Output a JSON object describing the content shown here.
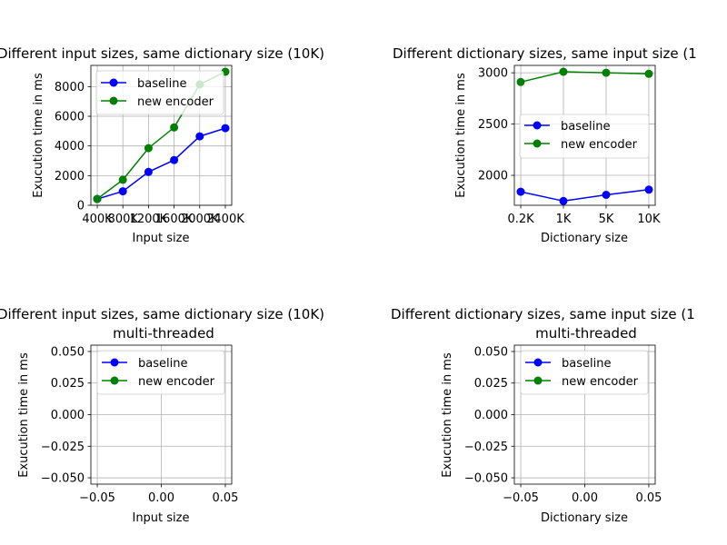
{
  "chart_data": [
    {
      "type": "line",
      "title": "Different input sizes, same dictionary size (10K)",
      "xlabel": "Input size",
      "ylabel": "Exucution time in ms",
      "categories": [
        "400K",
        "800K",
        "1200K",
        "1600K",
        "2000K",
        "2400K"
      ],
      "yticks": [
        0,
        2000,
        4000,
        6000,
        8000
      ],
      "ylim": [
        0,
        9430
      ],
      "grid": true,
      "legend": "upper-left",
      "series": [
        {
          "name": "baseline",
          "color": "#0000ff",
          "values": [
            420,
            940,
            2250,
            3050,
            4650,
            5200
          ]
        },
        {
          "name": "new encoder",
          "color": "#008000",
          "values": [
            430,
            1720,
            3850,
            5250,
            8150,
            9000
          ]
        }
      ]
    },
    {
      "type": "line",
      "title": "Different dictionary sizes, same input size (1",
      "xlabel": "Dictionary size",
      "ylabel": "Exucution time in ms",
      "categories": [
        "0.2K",
        "1K",
        "5K",
        "10K"
      ],
      "yticks": [
        2000,
        2500,
        3000
      ],
      "ylim": [
        1708,
        3072
      ],
      "grid": true,
      "legend": "center-right",
      "series": [
        {
          "name": "baseline",
          "color": "#0000ff",
          "values": [
            1840,
            1750,
            1810,
            1860
          ]
        },
        {
          "name": "new encoder",
          "color": "#008000",
          "values": [
            2910,
            3010,
            3000,
            2990
          ]
        }
      ]
    },
    {
      "type": "line",
      "title": "Different input sizes, same dictionary size (10K)",
      "subtitle": "multi-threaded",
      "xlabel": "Input size",
      "ylabel": "Exucution time in ms",
      "xticks": [
        "−0.05",
        "0.00",
        "0.05"
      ],
      "yticks": [
        "−0.050",
        "−0.025",
        "0.000",
        "0.025",
        "0.050"
      ],
      "xlim": [
        -0.055,
        0.055
      ],
      "ylim": [
        -0.055,
        0.055
      ],
      "grid": true,
      "legend": "upper-left",
      "series": [
        {
          "name": "baseline",
          "color": "#0000ff",
          "values": []
        },
        {
          "name": "new encoder",
          "color": "#008000",
          "values": []
        }
      ]
    },
    {
      "type": "line",
      "title": "Different dictionary sizes, same input size (1",
      "subtitle": "multi-threaded",
      "xlabel": "Dictionary size",
      "ylabel": "Exucution time in ms",
      "xticks": [
        "−0.05",
        "0.00",
        "0.05"
      ],
      "yticks": [
        "−0.050",
        "−0.025",
        "0.000",
        "0.025",
        "0.050"
      ],
      "xlim": [
        -0.055,
        0.055
      ],
      "ylim": [
        -0.055,
        0.055
      ],
      "grid": true,
      "legend": "upper-left",
      "series": [
        {
          "name": "baseline",
          "color": "#0000ff",
          "values": []
        },
        {
          "name": "new encoder",
          "color": "#008000",
          "values": []
        }
      ]
    }
  ]
}
